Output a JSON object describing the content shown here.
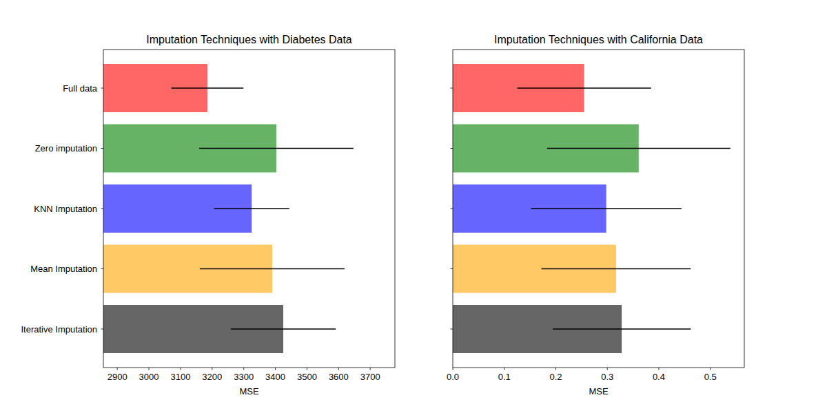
{
  "chart_data": [
    {
      "type": "bar",
      "orientation": "horizontal",
      "title": "Imputation Techniques with Diabetes Data",
      "x_label": "MSE",
      "categories": [
        "Full data",
        "Zero imputation",
        "KNN Imputation",
        "Mean Imputation",
        "Iterative Imputation"
      ],
      "values": [
        3185,
        3403,
        3325,
        3390,
        3425
      ],
      "errors": [
        114,
        244,
        119,
        229,
        166
      ],
      "colors": [
        "red",
        "green",
        "blue",
        "orange",
        "black"
      ],
      "xlim": [
        2856,
        3778
      ],
      "xticks": [
        2900,
        3000,
        3100,
        3200,
        3300,
        3400,
        3500,
        3600,
        3700
      ]
    },
    {
      "type": "bar",
      "orientation": "horizontal",
      "title": "Imputation Techniques with California Data",
      "x_label": "MSE",
      "categories": [
        "Full data",
        "Zero imputation",
        "KNN Imputation",
        "Mean Imputation",
        "Iterative Imputation"
      ],
      "values": [
        0.255,
        0.361,
        0.298,
        0.317,
        0.328
      ],
      "errors": [
        0.13,
        0.178,
        0.146,
        0.145,
        0.134
      ],
      "colors": [
        "red",
        "green",
        "blue",
        "orange",
        "black"
      ],
      "xlim": [
        0,
        0.566
      ],
      "xticks": [
        {
          "value": 0,
          "label": "0.0"
        },
        0.1,
        0.2,
        0.3,
        0.4,
        0.5
      ],
      "tick_labels": "x"
    }
  ]
}
